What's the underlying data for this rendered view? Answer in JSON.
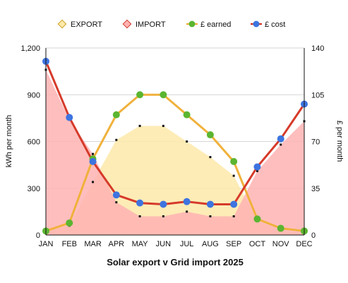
{
  "chart_data": {
    "type": "area",
    "title": "Solar export v Grid import 2025",
    "categories": [
      "JAN",
      "FEB",
      "MAR",
      "APR",
      "MAY",
      "JUN",
      "JUL",
      "AUG",
      "SEP",
      "OCT",
      "NOV",
      "DEC"
    ],
    "y_left": {
      "label": "kWh per month",
      "ylim": [
        0,
        1200
      ],
      "ticks": [
        "0",
        "300",
        "600",
        "900",
        "1,200"
      ],
      "tick_values": [
        0,
        300,
        600,
        900,
        1200
      ]
    },
    "y_right": {
      "label": "£ per month",
      "ylim": [
        0,
        140
      ],
      "ticks": [
        "0",
        "35",
        "70",
        "105",
        "140"
      ],
      "tick_values": [
        0,
        35,
        70,
        105,
        140
      ]
    },
    "grid": true,
    "legend_position": "top",
    "series": [
      {
        "name": "EXPORT",
        "kind": "area",
        "axis": "left",
        "color": "#fde9a9",
        "marker": "#111111",
        "values": [
          20,
          60,
          340,
          610,
          700,
          700,
          600,
          500,
          380,
          90,
          30,
          10
        ]
      },
      {
        "name": "IMPORT",
        "kind": "area",
        "axis": "left",
        "color": "#ffb3b3",
        "marker": "#111111",
        "values": [
          1060,
          740,
          520,
          210,
          120,
          120,
          150,
          120,
          120,
          410,
          580,
          730
        ]
      },
      {
        "name": "£ earned",
        "kind": "line",
        "axis": "right",
        "color": "#f0b13b",
        "marker": "#5bb531",
        "values": [
          3,
          9,
          57,
          90,
          105,
          105,
          90,
          75,
          55,
          12,
          5,
          3
        ]
      },
      {
        "name": "£ cost",
        "kind": "line",
        "axis": "right",
        "color": "#d63a2a",
        "marker": "#3d74e0",
        "values": [
          130,
          88,
          55,
          30,
          24,
          23,
          25,
          23,
          23,
          51,
          72,
          98
        ]
      }
    ]
  }
}
